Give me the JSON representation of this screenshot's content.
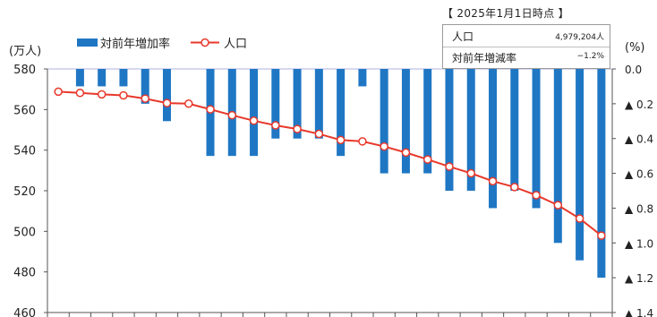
{
  "info": {
    "title": "【 2025年1月1日時点 】",
    "population_label": "人口",
    "population_value": "4,979,204人",
    "rate_label": "対前年増減率",
    "rate_value": "−1.2%"
  },
  "legend": {
    "bar_label": "対前年増加率",
    "line_label": "人口"
  },
  "colors": {
    "bar": "#1f77c4",
    "line": "#e8382b",
    "grid": "#b8b8e8",
    "zero_line": "#b0b0e0"
  },
  "chart_data": {
    "type": "bar+line",
    "title": "",
    "left_axis": {
      "unit": "(万人)",
      "ylim": [
        460,
        580
      ],
      "ticks": [
        460,
        480,
        500,
        520,
        540,
        560,
        580
      ]
    },
    "right_axis": {
      "unit": "(%)",
      "ylim": [
        0.0,
        1.4
      ],
      "inverted": true,
      "ticks": [
        "0.0",
        "▲ 0.2",
        "▲ 0.4",
        "▲ 0.6",
        "▲ 0.8",
        "▲ 1.0",
        "▲ 1.2",
        "▲ 1.4"
      ]
    },
    "series": [
      {
        "name": "対前年増加率",
        "type": "bar",
        "axis": "right",
        "unit": "%",
        "values": [
          0.0,
          -0.1,
          -0.1,
          -0.1,
          -0.2,
          -0.3,
          0.0,
          -0.5,
          -0.5,
          -0.5,
          -0.4,
          -0.4,
          -0.4,
          -0.5,
          -0.1,
          -0.6,
          -0.6,
          -0.6,
          -0.7,
          -0.7,
          -0.8,
          -0.7,
          -0.8,
          -1.0,
          -1.1,
          -1.2
        ]
      },
      {
        "name": "人口",
        "type": "line",
        "axis": "left",
        "unit": "万人",
        "values": [
          568.8,
          568.2,
          567.5,
          567.0,
          565.4,
          563.2,
          562.9,
          560.1,
          557.2,
          554.5,
          552.2,
          550.4,
          548.0,
          545.0,
          544.3,
          541.8,
          538.8,
          535.4,
          531.9,
          528.6,
          524.7,
          521.8,
          517.8,
          512.9,
          506.3,
          497.9
        ]
      }
    ],
    "grid": true,
    "legend_position": "top-left"
  }
}
